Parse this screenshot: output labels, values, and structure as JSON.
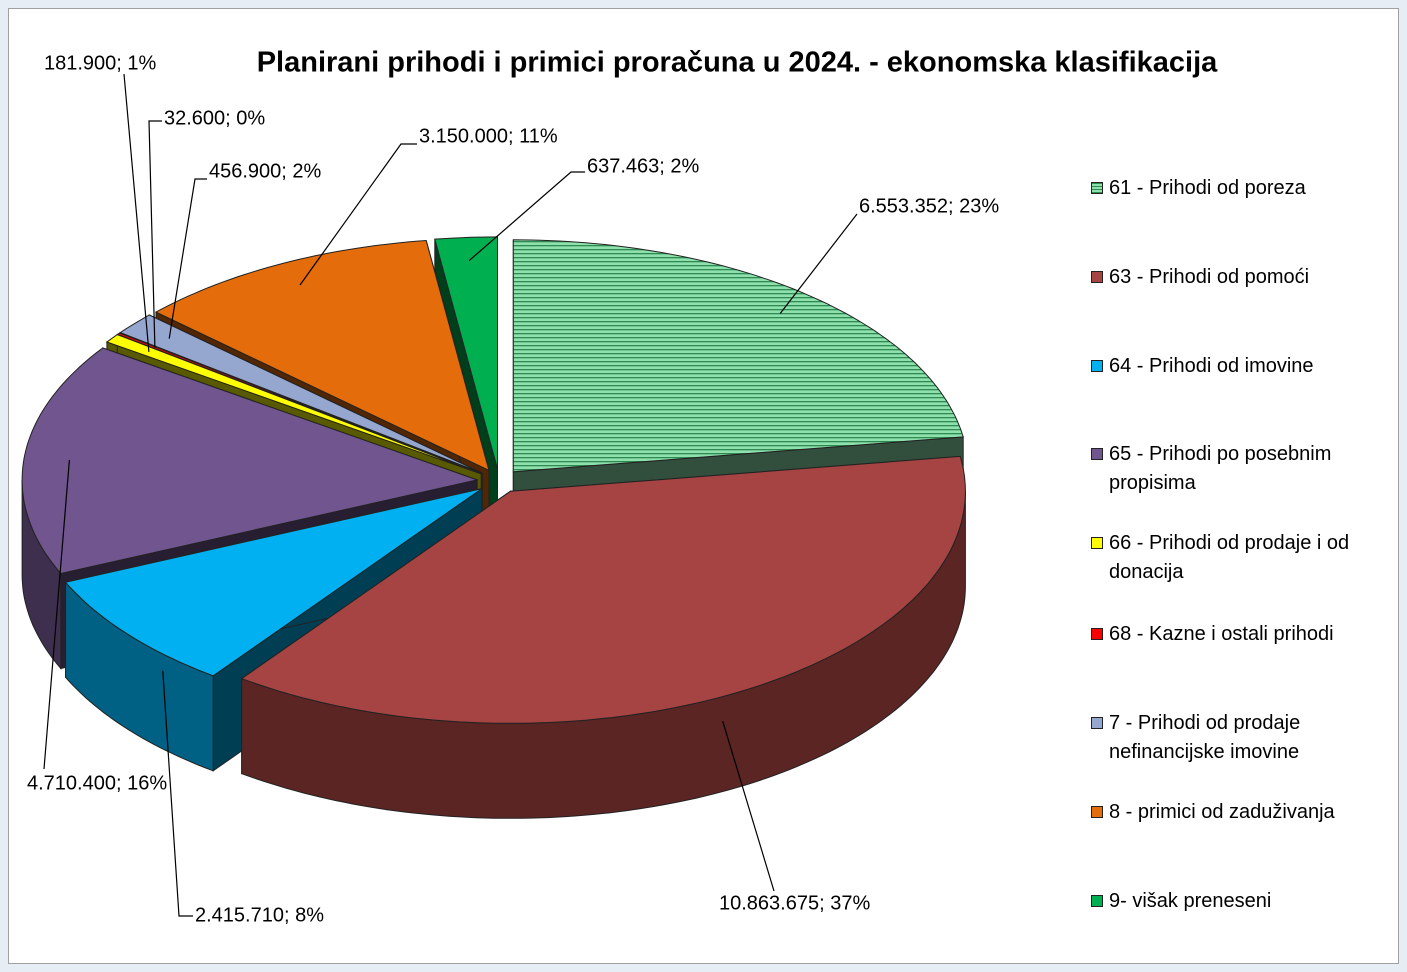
{
  "chart_data": {
    "type": "pie3d",
    "title": "Planirani prihodi i primici proračuna u 2024. - ekonomska klasifikacija",
    "categories": [
      "61 - Prihodi od poreza",
      "63 - Prihodi od pomoći",
      "64 - Prihodi od imovine",
      "65 - Prihodi po posebnim propisima",
      "66 - Prihodi od prodaje i od donacija",
      "68 - Kazne i ostali prihodi",
      "7 - Prihodi od prodaje nefinancijske imovine",
      "8 - primici od zaduživanja",
      "9- višak preneseni"
    ],
    "values": [
      6553352,
      10863675,
      2415710,
      4710400,
      181900,
      32600,
      456900,
      3150000,
      637463
    ],
    "value_labels": [
      "6.553.352; 23%",
      "10.863.675; 37%",
      "2.415.710; 8%",
      "4.710.400; 16%",
      "181.900; 1%",
      "32.600; 0%",
      "456.900; 2%",
      "3.150.000; 11%",
      "637.463; 2%"
    ],
    "colors": [
      "#8ee0ad",
      "#a54442",
      "#00b0f0",
      "#70558f",
      "#ffff00",
      "#ff0000",
      "#95a6cf",
      "#e46c0a",
      "#00b050"
    ],
    "legend": "right"
  }
}
